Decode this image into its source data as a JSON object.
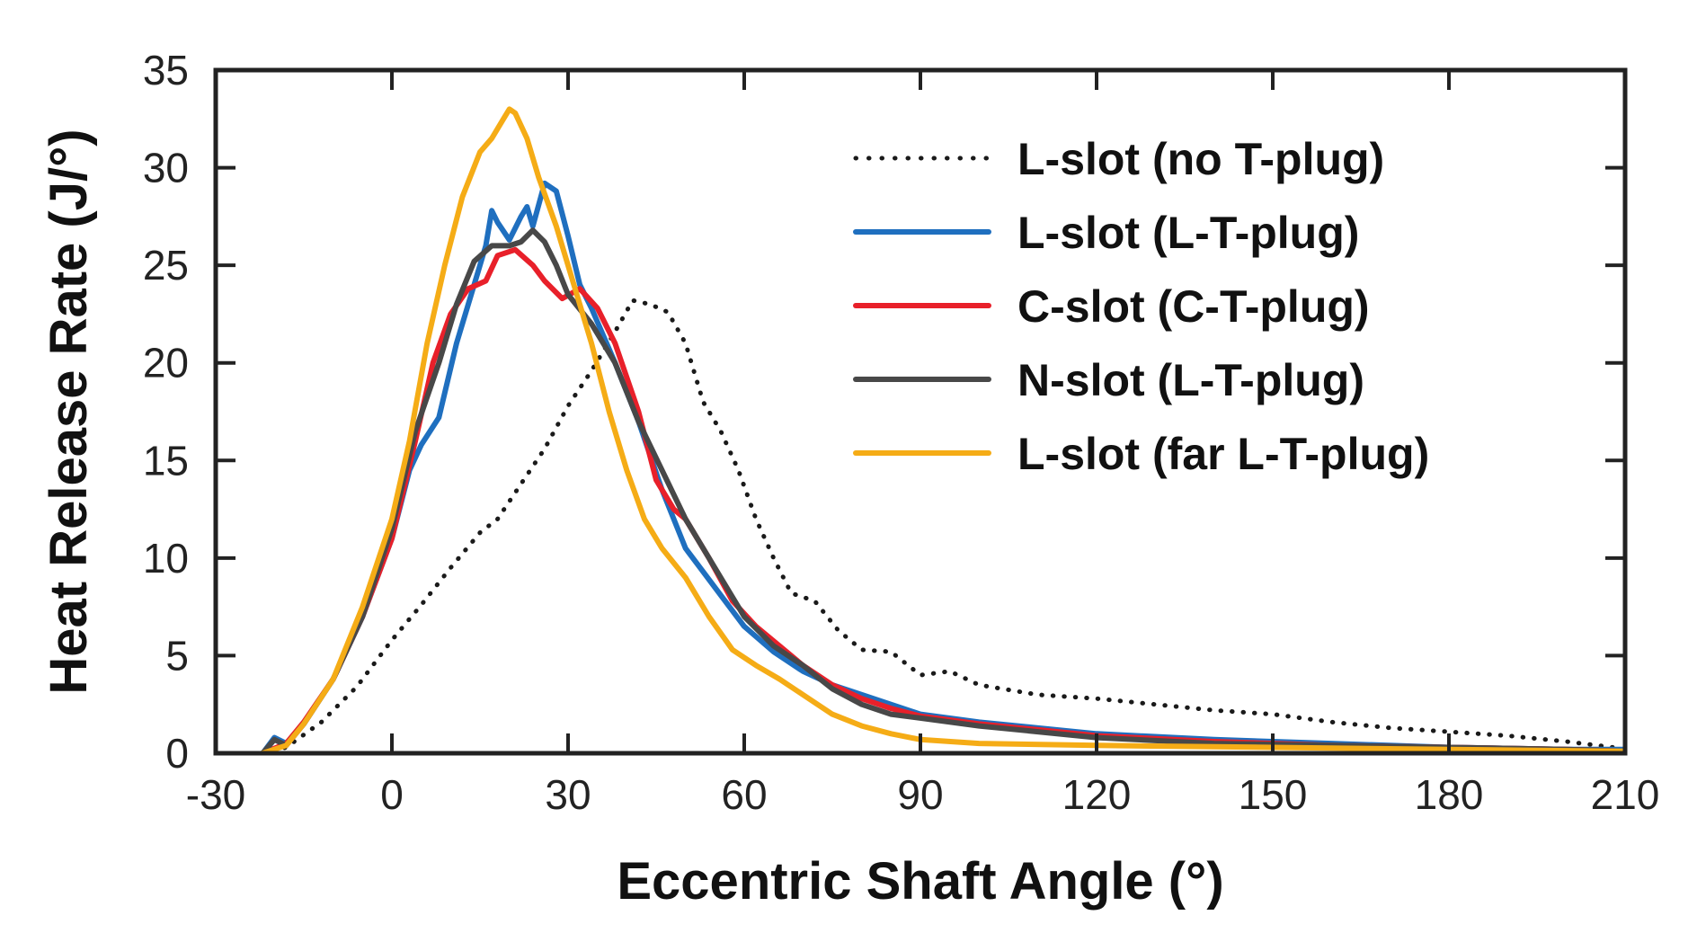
{
  "chart_data": {
    "type": "line",
    "title": "",
    "xlabel": "Eccentric Shaft Angle (°)",
    "ylabel": "Heat Release Rate (J/°)",
    "xlim": [
      -30,
      210
    ],
    "ylim": [
      0,
      35
    ],
    "xticks": [
      -30,
      0,
      30,
      60,
      90,
      120,
      150,
      180,
      210
    ],
    "yticks": [
      0,
      5,
      10,
      15,
      20,
      25,
      30,
      35
    ],
    "grid": false,
    "legend_position": "top-right",
    "series": [
      {
        "name": "L-slot (no T-plug)",
        "color": "#1a1a1a",
        "style": "dotted",
        "points": [
          [
            -22,
            0
          ],
          [
            -18,
            0.3
          ],
          [
            -12,
            1.6
          ],
          [
            -6,
            3.4
          ],
          [
            0,
            5.8
          ],
          [
            5,
            7.6
          ],
          [
            10,
            9.5
          ],
          [
            15,
            11.3
          ],
          [
            18,
            12.0
          ],
          [
            22,
            13.8
          ],
          [
            26,
            15.6
          ],
          [
            30,
            17.8
          ],
          [
            34,
            19.6
          ],
          [
            38,
            21.6
          ],
          [
            41,
            23.2
          ],
          [
            44,
            23.0
          ],
          [
            47,
            22.6
          ],
          [
            50,
            21.0
          ],
          [
            53,
            18.0
          ],
          [
            56,
            16.5
          ],
          [
            59,
            14.5
          ],
          [
            62,
            12.0
          ],
          [
            65,
            10.0
          ],
          [
            68,
            8.2
          ],
          [
            72,
            7.8
          ],
          [
            76,
            6.3
          ],
          [
            80,
            5.3
          ],
          [
            85,
            5.2
          ],
          [
            90,
            4.0
          ],
          [
            95,
            4.2
          ],
          [
            100,
            3.5
          ],
          [
            110,
            3.0
          ],
          [
            120,
            2.8
          ],
          [
            130,
            2.5
          ],
          [
            140,
            2.2
          ],
          [
            150,
            2.0
          ],
          [
            160,
            1.6
          ],
          [
            170,
            1.3
          ],
          [
            180,
            1.1
          ],
          [
            190,
            0.9
          ],
          [
            200,
            0.6
          ],
          [
            208,
            0.3
          ]
        ]
      },
      {
        "name": "L-slot (L-T-plug)",
        "color": "#1f6fbf",
        "style": "solid",
        "points": [
          [
            -22,
            0
          ],
          [
            -20,
            0.8
          ],
          [
            -18,
            0.5
          ],
          [
            -15,
            1.5
          ],
          [
            -10,
            3.8
          ],
          [
            -5,
            7.0
          ],
          [
            0,
            11.0
          ],
          [
            3,
            14.5
          ],
          [
            5,
            15.8
          ],
          [
            8,
            17.2
          ],
          [
            11,
            21.0
          ],
          [
            14,
            24.0
          ],
          [
            16,
            26.0
          ],
          [
            17,
            27.8
          ],
          [
            18,
            27.2
          ],
          [
            20,
            26.3
          ],
          [
            22,
            27.5
          ],
          [
            23,
            28.0
          ],
          [
            24,
            27.0
          ],
          [
            26,
            29.2
          ],
          [
            28,
            28.8
          ],
          [
            30,
            26.5
          ],
          [
            32,
            24.0
          ],
          [
            34,
            22.8
          ],
          [
            38,
            20.0
          ],
          [
            42,
            17.0
          ],
          [
            46,
            13.5
          ],
          [
            50,
            10.5
          ],
          [
            55,
            8.5
          ],
          [
            60,
            6.5
          ],
          [
            65,
            5.2
          ],
          [
            70,
            4.2
          ],
          [
            75,
            3.5
          ],
          [
            80,
            3.0
          ],
          [
            85,
            2.5
          ],
          [
            90,
            2.0
          ],
          [
            100,
            1.6
          ],
          [
            110,
            1.3
          ],
          [
            120,
            1.0
          ],
          [
            140,
            0.7
          ],
          [
            160,
            0.5
          ],
          [
            180,
            0.3
          ],
          [
            200,
            0.2
          ],
          [
            210,
            0.2
          ]
        ]
      },
      {
        "name": "C-slot (C-T-plug)",
        "color": "#e8202a",
        "style": "solid",
        "points": [
          [
            -22,
            0
          ],
          [
            -18,
            0.5
          ],
          [
            -15,
            1.6
          ],
          [
            -10,
            3.8
          ],
          [
            -5,
            7.0
          ],
          [
            0,
            11.0
          ],
          [
            4,
            16.0
          ],
          [
            7,
            20.0
          ],
          [
            10,
            22.5
          ],
          [
            13,
            23.8
          ],
          [
            16,
            24.2
          ],
          [
            18,
            25.5
          ],
          [
            21,
            25.8
          ],
          [
            24,
            25.0
          ],
          [
            26,
            24.2
          ],
          [
            29,
            23.3
          ],
          [
            32,
            23.8
          ],
          [
            35,
            22.8
          ],
          [
            38,
            21.0
          ],
          [
            42,
            17.5
          ],
          [
            45,
            14.0
          ],
          [
            48,
            12.5
          ],
          [
            50,
            12.0
          ],
          [
            54,
            10.0
          ],
          [
            58,
            7.8
          ],
          [
            62,
            6.5
          ],
          [
            66,
            5.5
          ],
          [
            70,
            4.5
          ],
          [
            75,
            3.5
          ],
          [
            80,
            2.8
          ],
          [
            85,
            2.3
          ],
          [
            90,
            1.9
          ],
          [
            100,
            1.5
          ],
          [
            110,
            1.2
          ],
          [
            120,
            0.9
          ],
          [
            140,
            0.6
          ],
          [
            160,
            0.4
          ],
          [
            180,
            0.3
          ],
          [
            200,
            0.2
          ],
          [
            210,
            0.1
          ]
        ]
      },
      {
        "name": "N-slot (L-T-plug)",
        "color": "#484848",
        "style": "solid",
        "points": [
          [
            -22,
            0
          ],
          [
            -20,
            0.7
          ],
          [
            -18,
            0.4
          ],
          [
            -15,
            1.5
          ],
          [
            -10,
            3.8
          ],
          [
            -5,
            7.0
          ],
          [
            0,
            11.5
          ],
          [
            4,
            16.5
          ],
          [
            8,
            20.0
          ],
          [
            11,
            23.0
          ],
          [
            14,
            25.2
          ],
          [
            17,
            26.0
          ],
          [
            20,
            26.0
          ],
          [
            22,
            26.2
          ],
          [
            24,
            26.8
          ],
          [
            26,
            26.2
          ],
          [
            28,
            25.0
          ],
          [
            30,
            23.5
          ],
          [
            34,
            22.0
          ],
          [
            38,
            20.0
          ],
          [
            42,
            17.0
          ],
          [
            46,
            14.5
          ],
          [
            50,
            12.0
          ],
          [
            55,
            9.5
          ],
          [
            60,
            7.0
          ],
          [
            65,
            5.5
          ],
          [
            70,
            4.5
          ],
          [
            75,
            3.3
          ],
          [
            80,
            2.5
          ],
          [
            85,
            2.0
          ],
          [
            90,
            1.8
          ],
          [
            100,
            1.4
          ],
          [
            110,
            1.1
          ],
          [
            120,
            0.8
          ],
          [
            140,
            0.5
          ],
          [
            160,
            0.4
          ],
          [
            180,
            0.3
          ],
          [
            200,
            0.2
          ],
          [
            210,
            0.1
          ]
        ]
      },
      {
        "name": "L-slot (far L-T-plug)",
        "color": "#f5ac16",
        "style": "solid",
        "points": [
          [
            -22,
            0
          ],
          [
            -18,
            0.4
          ],
          [
            -15,
            1.5
          ],
          [
            -10,
            3.8
          ],
          [
            -5,
            7.5
          ],
          [
            0,
            12.0
          ],
          [
            3,
            16.0
          ],
          [
            6,
            21.0
          ],
          [
            9,
            25.0
          ],
          [
            12,
            28.5
          ],
          [
            15,
            30.8
          ],
          [
            17,
            31.5
          ],
          [
            19,
            32.5
          ],
          [
            20,
            33.0
          ],
          [
            21,
            32.8
          ],
          [
            23,
            31.5
          ],
          [
            25,
            29.5
          ],
          [
            28,
            27.0
          ],
          [
            31,
            24.0
          ],
          [
            34,
            21.0
          ],
          [
            37,
            17.5
          ],
          [
            40,
            14.5
          ],
          [
            43,
            12.0
          ],
          [
            46,
            10.5
          ],
          [
            50,
            9.0
          ],
          [
            54,
            7.0
          ],
          [
            58,
            5.3
          ],
          [
            62,
            4.5
          ],
          [
            66,
            3.8
          ],
          [
            70,
            3.0
          ],
          [
            75,
            2.0
          ],
          [
            80,
            1.4
          ],
          [
            85,
            1.0
          ],
          [
            90,
            0.7
          ],
          [
            100,
            0.5
          ],
          [
            120,
            0.4
          ],
          [
            150,
            0.3
          ],
          [
            180,
            0.2
          ],
          [
            210,
            0.1
          ]
        ]
      }
    ]
  }
}
